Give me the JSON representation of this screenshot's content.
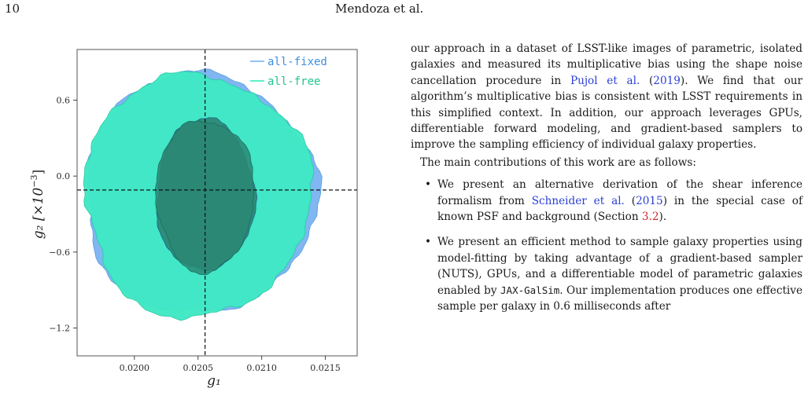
{
  "page": {
    "number": "10",
    "running_head": "Mendoza et al."
  },
  "figure": {
    "xlabel": "g₁",
    "ylabel_main": "g₂ [×10",
    "ylabel_exp": "−3",
    "ylabel_close": "]",
    "x_ticks": [
      "0.0200",
      "0.0205",
      "0.0210",
      "0.0215"
    ],
    "y_ticks": [
      "0.6",
      "0.0",
      "−0.6",
      "−1.2"
    ],
    "legend": [
      {
        "label": "all-fixed",
        "color": "#6aaef0"
      },
      {
        "label": "all-free",
        "color": "#2ce8b6"
      }
    ],
    "colors": {
      "fixed_outer": "#80b6f2",
      "free_outer": "#3fe8c4",
      "inner": "#2a8774",
      "legend_fixed_text": "#3f8fde",
      "legend_free_text": "#1fc491"
    }
  },
  "chart_data": {
    "type": "scatter",
    "title": "",
    "xlabel": "g1",
    "ylabel": "g2 [×10^-3]",
    "xlim": [
      0.01955,
      0.02175
    ],
    "ylim": [
      -1.42,
      1.0
    ],
    "x_ticks": [
      0.02,
      0.0205,
      0.021,
      0.0215
    ],
    "y_ticks": [
      0.6,
      0.0,
      -0.6,
      -1.2
    ],
    "reference_lines": {
      "vertical_x": 0.020555,
      "horizontal_y": -0.11
    },
    "legend_position": "top-right",
    "series": [
      {
        "name": "all-fixed",
        "kind": "contours",
        "center": [
          0.020555,
          -0.16
        ],
        "levels": [
          {
            "level": "inner",
            "x_range": [
              0.02017,
              0.02094
            ],
            "y_range": [
              -0.75,
              0.45
            ]
          },
          {
            "level": "outer",
            "x_range": [
              0.0196,
              0.02142
            ],
            "y_range": [
              -1.09,
              0.81
            ]
          }
        ]
      },
      {
        "name": "all-free",
        "kind": "contours",
        "center": [
          0.020555,
          -0.16
        ],
        "levels": [
          {
            "level": "inner",
            "x_range": [
              0.02017,
              0.02094
            ],
            "y_range": [
              -0.75,
              0.45
            ]
          },
          {
            "level": "outer",
            "x_range": [
              0.0196,
              0.02138
            ],
            "y_range": [
              -1.11,
              0.81
            ]
          }
        ]
      }
    ]
  },
  "text": {
    "para1_pre": "our approach in a dataset of LSST-like images of parametric, isolated galaxies and measured its multiplicative bias using the shape noise cancellation procedure in ",
    "cite1": "Pujol et al.",
    "para1_paren_open": " (",
    "cite1_year": "2019",
    "para1_post": "). We find that our algorithm’s multiplicative bias is consistent with LSST requirements in this simplified context. In addition, our approach leverages GPUs, differentiable forward modeling, and gradient-based samplers to improve the sampling efficiency of individual galaxy properties.",
    "para2": "The main contributions of this work are as follows:",
    "bullet": "•",
    "b1_pre": "We present an alternative derivation of the shear inference formalism from ",
    "b1_cite": "Schneider et al.",
    "b1_open": " (",
    "b1_cite_year": "2015",
    "b1_mid": ") in the special case of known PSF and background (Section ",
    "b1_ref": "3.2",
    "b1_post": ").",
    "b2_pre": "We present an efficient method to sample galaxy properties using model-fitting by taking advantage of a gradient-based sampler (NUTS), GPUs, and a differentiable model of parametric galaxies enabled by ",
    "b2_code": "JAX-GalSim",
    "b2_post": ". Our implementation produces one effective sample per galaxy in 0.6 milliseconds after"
  }
}
